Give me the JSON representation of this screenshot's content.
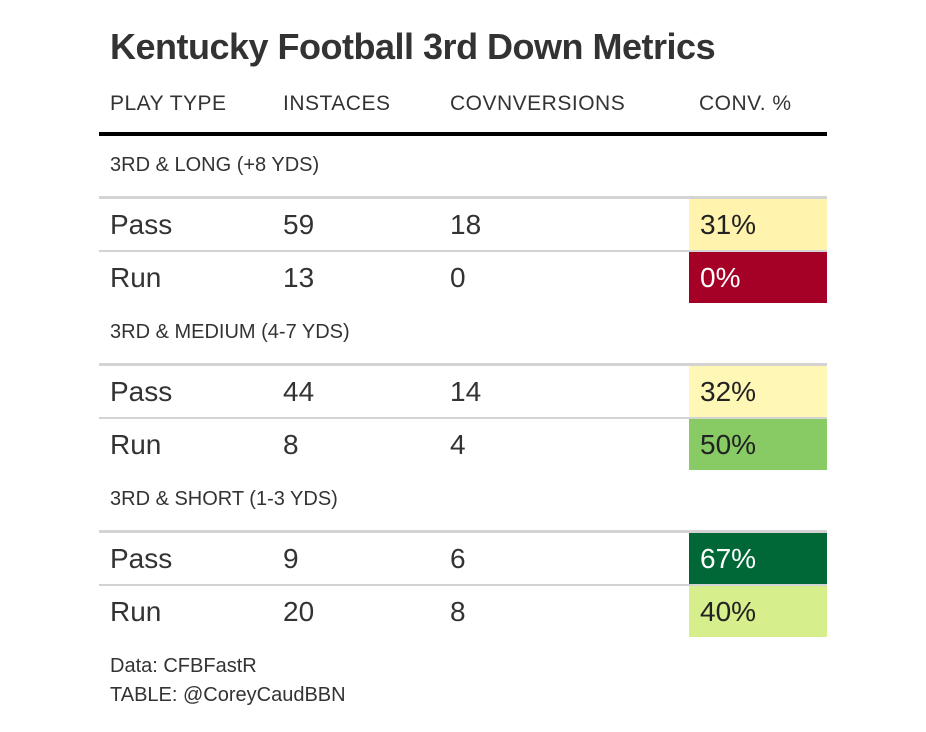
{
  "title": "Kentucky Football 3rd Down Metrics",
  "columns": [
    "PLAY TYPE",
    "INSTACES",
    "COVNVERSIONS",
    "CONV. %"
  ],
  "chart_data": {
    "type": "table",
    "title": "Kentucky Football 3rd Down Metrics",
    "columns": [
      "PLAY TYPE",
      "INSTACES",
      "COVNVERSIONS",
      "CONV. %"
    ],
    "groups": [
      {
        "label": "3RD & LONG (+8 YDS)",
        "rows": [
          {
            "play": "Pass",
            "instances": 59,
            "conversions": 18,
            "pct": "31%",
            "color": "#fff3ae",
            "text_color": "#222222"
          },
          {
            "play": "Run",
            "instances": 13,
            "conversions": 0,
            "pct": "0%",
            "color": "#a50026",
            "text_color": "#ffffff"
          }
        ]
      },
      {
        "label": "3RD & MEDIUM (4-7 YDS)",
        "rows": [
          {
            "play": "Pass",
            "instances": 44,
            "conversions": 14,
            "pct": "32%",
            "color": "#fff7b6",
            "text_color": "#222222"
          },
          {
            "play": "Run",
            "instances": 8,
            "conversions": 4,
            "pct": "50%",
            "color": "#88cb64",
            "text_color": "#222222"
          }
        ]
      },
      {
        "label": "3RD & SHORT (1-3 YDS)",
        "rows": [
          {
            "play": "Pass",
            "instances": 9,
            "conversions": 6,
            "pct": "67%",
            "color": "#006837",
            "text_color": "#ffffff"
          },
          {
            "play": "Run",
            "instances": 20,
            "conversions": 8,
            "pct": "40%",
            "color": "#d6ee8c",
            "text_color": "#222222"
          }
        ]
      }
    ]
  },
  "footer": {
    "source": "Data: CFBFastR",
    "credit": "TABLE: @CoreyCaudBBN"
  }
}
